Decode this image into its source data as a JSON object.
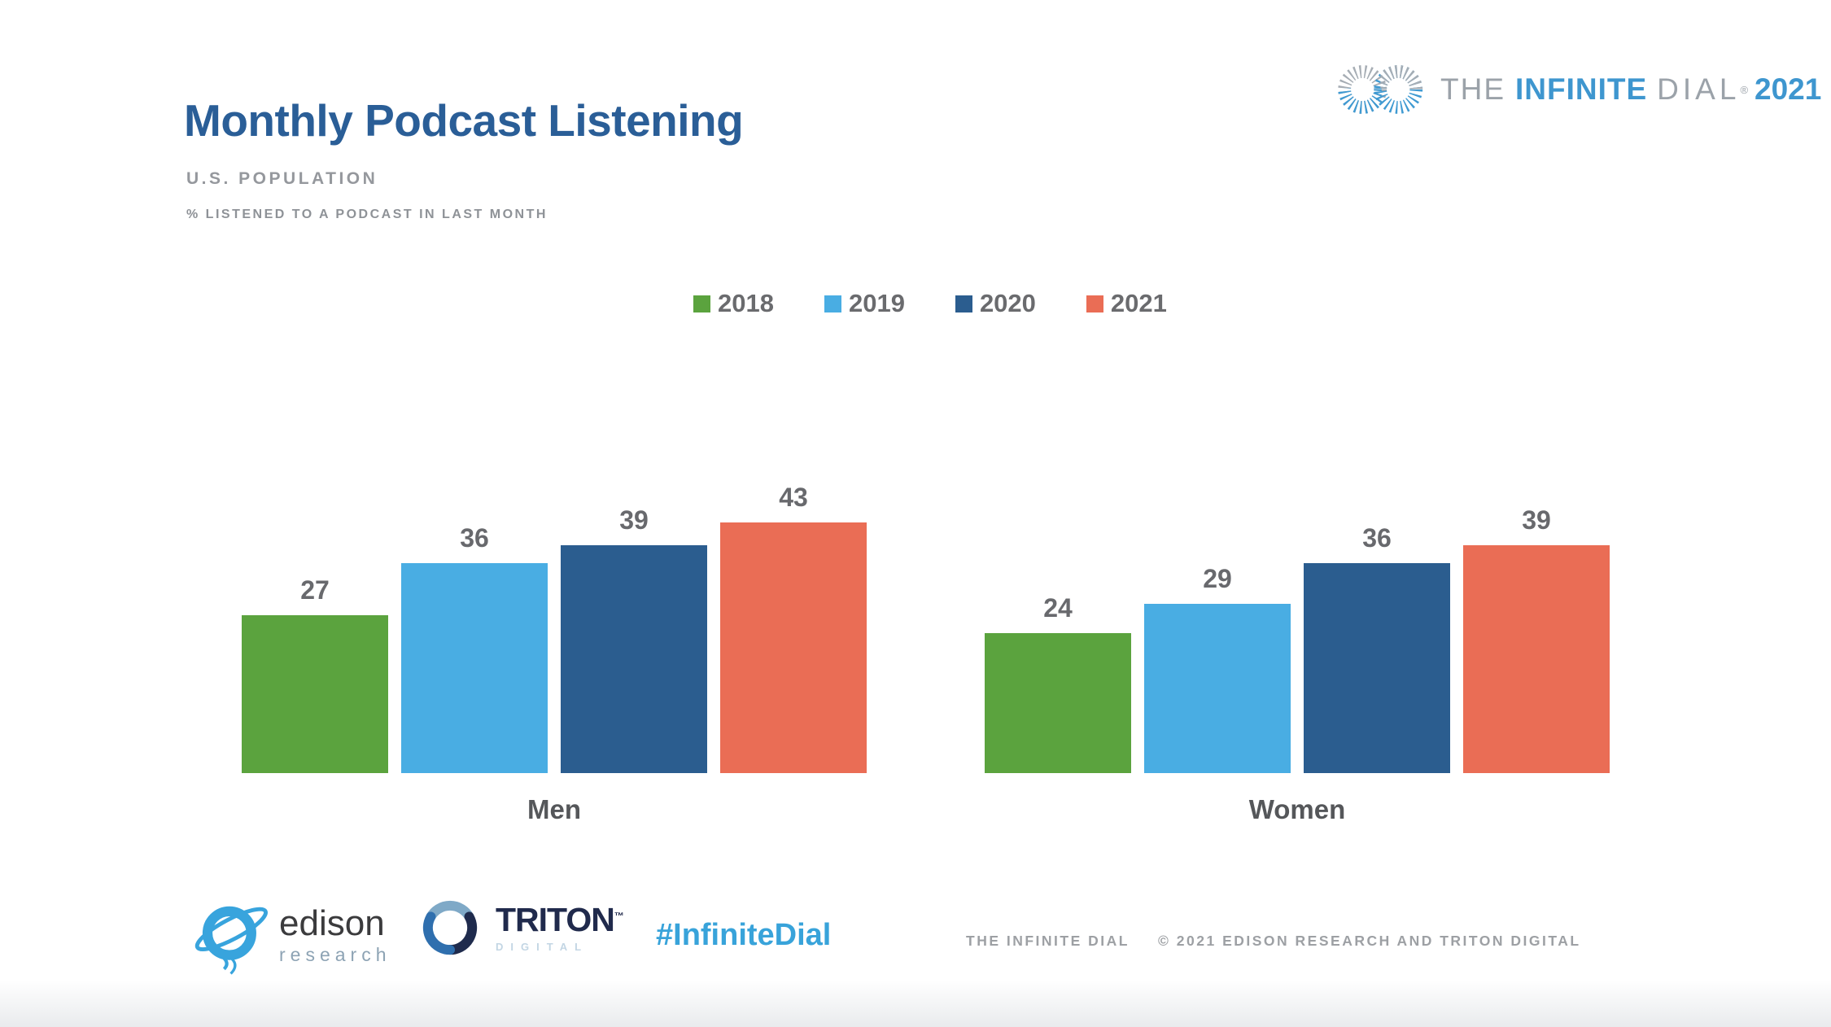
{
  "header": {
    "title": "Monthly Podcast Listening",
    "subtitle": "U.S. POPULATION",
    "note": "% LISTENED TO A PODCAST IN LAST MONTH"
  },
  "brand": {
    "the": "THE",
    "infinite": "INFINITE",
    "dial": "DIAL",
    "reg": "®",
    "year": "2021"
  },
  "chart_data": {
    "type": "bar",
    "title": "Monthly Podcast Listening",
    "subtitle": "U.S. POPULATION",
    "measure": "% LISTENED TO A PODCAST IN LAST MONTH",
    "categories": [
      "Men",
      "Women"
    ],
    "series": [
      {
        "name": "2018",
        "color": "#5ba33e",
        "values": [
          27,
          24
        ]
      },
      {
        "name": "2019",
        "color": "#49ade3",
        "values": [
          36,
          29
        ]
      },
      {
        "name": "2020",
        "color": "#2b5d8f",
        "values": [
          39,
          36
        ]
      },
      {
        "name": "2021",
        "color": "#ea6d55",
        "values": [
          43,
          39
        ]
      }
    ],
    "unit": "percent",
    "value_labels": true,
    "grid": false,
    "axes_hidden": true,
    "legend_position": "top",
    "ylim": [
      0,
      50
    ]
  },
  "footer": {
    "edison": {
      "name": "edison",
      "sub": "research"
    },
    "triton": {
      "name": "TRITON",
      "tm": "™",
      "sub": "DIGITAL"
    },
    "hashtag": "#InfiniteDial",
    "copyright_left": "THE INFINITE DIAL",
    "copyright_right": "© 2021 EDISON RESEARCH AND TRITON DIGITAL"
  },
  "colors": {
    "title_blue": "#2a5e97",
    "brand_blue": "#3e96cf",
    "brand_gray": "#9ba2a9",
    "hashtag_blue": "#38a3da",
    "text_gray": "#8e9297",
    "label_gray": "#68696d",
    "bar_2018": "#5ba33e",
    "bar_2019": "#49ade3",
    "bar_2020": "#2b5d8f",
    "bar_2021": "#ea6d55"
  }
}
